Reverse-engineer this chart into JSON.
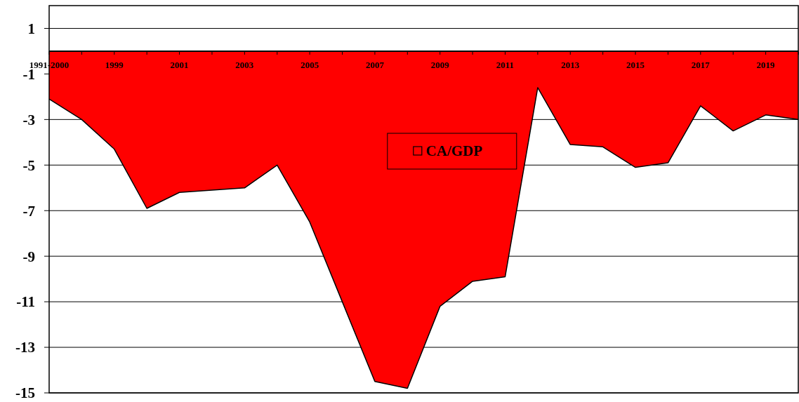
{
  "chart_data": {
    "type": "area",
    "categories": [
      "1991-2000",
      null,
      "1999",
      null,
      "2001",
      null,
      "2003",
      null,
      "2005",
      null,
      "2007",
      null,
      "2009",
      null,
      "2011",
      null,
      "2013",
      null,
      "2015",
      null,
      "2017",
      null,
      "2019",
      null
    ],
    "series": [
      {
        "name": "CA/GDP",
        "color": "#ff0000",
        "values": [
          -2.1,
          -3.0,
          -4.3,
          -6.9,
          -6.2,
          -6.1,
          -6.0,
          -5.0,
          -7.5,
          -11.0,
          -14.5,
          -14.8,
          -11.2,
          -10.1,
          -9.9,
          -1.6,
          -4.1,
          -4.2,
          -5.1,
          -4.9,
          -2.4,
          -3.5,
          -2.8,
          -3.0
        ]
      }
    ],
    "ylim": [
      -15,
      2
    ],
    "yticks": [
      1,
      -1,
      -3,
      -5,
      -7,
      -9,
      -11,
      -13,
      -15
    ],
    "grid": "y",
    "legend": "center"
  }
}
